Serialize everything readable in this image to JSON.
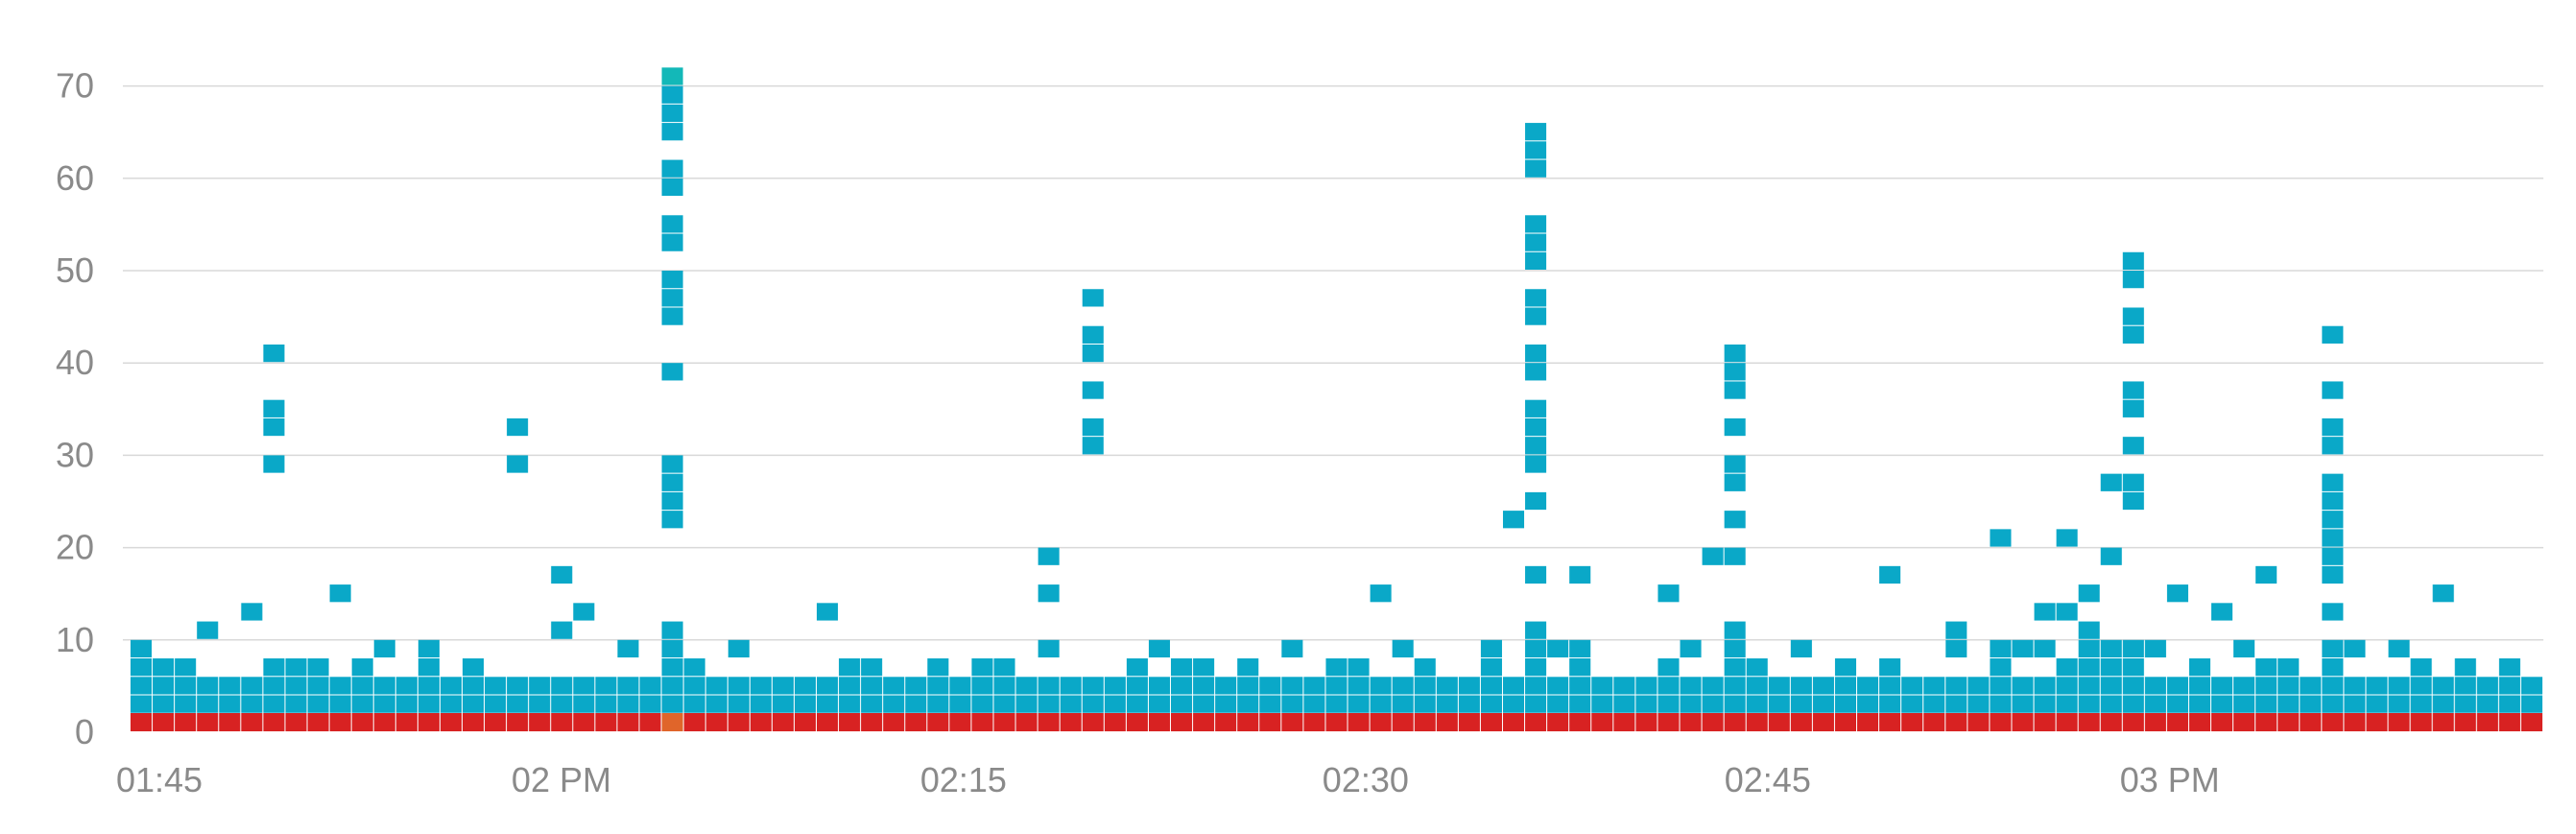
{
  "chart_data": {
    "type": "heatmap",
    "title": "",
    "xlabel": "",
    "ylabel": "",
    "x_tick_labels": [
      "01:45",
      "02 PM",
      "02:15",
      "02:30",
      "02:45",
      "03 PM"
    ],
    "x_tick_minutes": [
      0,
      15,
      30,
      45,
      60,
      75
    ],
    "y_tick_labels": [
      "0",
      "10",
      "20",
      "30",
      "40",
      "50",
      "60",
      "70"
    ],
    "y_ticks": [
      0,
      10,
      20,
      30,
      40,
      50,
      60,
      70
    ],
    "ylim": [
      0,
      72
    ],
    "x_range_minutes": [
      0,
      90
    ],
    "minutes_per_column": 1,
    "bucket_size": 2,
    "grid": true,
    "colors": {
      "cell": "#0aa8c8",
      "cell_hot": "#13b8b8",
      "baseline": "#d82222",
      "baseline_hot": "#e0652a",
      "grid": "#d9d9d9",
      "tick": "#8a8a8a"
    },
    "columns": [
      [
        2,
        4,
        6,
        8
      ],
      [
        2,
        4,
        6
      ],
      [
        2,
        4,
        6
      ],
      [
        2,
        4,
        10
      ],
      [
        2,
        4
      ],
      [
        2,
        4,
        12
      ],
      [
        2,
        4,
        6,
        28,
        32,
        34,
        40
      ],
      [
        2,
        4,
        6
      ],
      [
        2,
        4,
        6
      ],
      [
        2,
        4,
        14
      ],
      [
        2,
        4,
        6
      ],
      [
        2,
        4,
        8
      ],
      [
        2,
        4
      ],
      [
        2,
        4,
        6,
        8
      ],
      [
        2,
        4
      ],
      [
        2,
        4,
        6
      ],
      [
        2,
        4
      ],
      [
        2,
        4,
        28,
        32
      ],
      [
        2,
        4
      ],
      [
        2,
        4,
        10,
        16
      ],
      [
        2,
        4,
        12
      ],
      [
        2,
        4
      ],
      [
        2,
        4,
        8
      ],
      [
        2,
        4
      ],
      [
        2,
        4,
        6,
        8,
        10,
        22,
        24,
        26,
        28,
        38,
        44,
        46,
        48,
        52,
        54,
        58,
        60,
        64,
        66,
        68,
        70
      ],
      [
        2,
        4,
        6
      ],
      [
        2,
        4
      ],
      [
        2,
        4,
        8
      ],
      [
        2,
        4
      ],
      [
        2,
        4
      ],
      [
        2,
        4
      ],
      [
        2,
        4,
        12
      ],
      [
        2,
        4,
        6
      ],
      [
        2,
        4,
        6
      ],
      [
        2,
        4
      ],
      [
        2,
        4
      ],
      [
        2,
        4,
        6
      ],
      [
        2,
        4
      ],
      [
        2,
        4,
        6
      ],
      [
        2,
        4,
        6
      ],
      [
        2,
        4
      ],
      [
        2,
        4,
        8,
        14,
        18
      ],
      [
        2,
        4
      ],
      [
        2,
        4,
        30,
        32,
        36,
        40,
        42,
        46
      ],
      [
        2,
        4
      ],
      [
        2,
        4,
        6
      ],
      [
        2,
        4,
        8
      ],
      [
        2,
        4,
        6
      ],
      [
        2,
        4,
        6
      ],
      [
        2,
        4
      ],
      [
        2,
        4,
        6
      ],
      [
        2,
        4
      ],
      [
        2,
        4,
        8
      ],
      [
        2,
        4
      ],
      [
        2,
        4,
        6
      ],
      [
        2,
        4,
        6
      ],
      [
        2,
        4,
        14
      ],
      [
        2,
        4,
        8
      ],
      [
        2,
        4,
        6
      ],
      [
        2,
        4
      ],
      [
        2,
        4
      ],
      [
        2,
        4,
        6,
        8
      ],
      [
        2,
        4,
        22
      ],
      [
        2,
        4,
        6,
        8,
        10,
        16,
        24,
        28,
        30,
        32,
        34,
        38,
        40,
        44,
        46,
        50,
        52,
        54,
        60,
        62,
        64
      ],
      [
        2,
        4,
        8
      ],
      [
        2,
        4,
        6,
        8,
        16
      ],
      [
        2,
        4
      ],
      [
        2,
        4
      ],
      [
        2,
        4
      ],
      [
        2,
        4,
        6,
        14
      ],
      [
        2,
        4,
        8
      ],
      [
        2,
        4,
        18
      ],
      [
        2,
        4,
        6,
        8,
        10,
        18,
        22,
        26,
        28,
        32,
        36,
        38,
        40
      ],
      [
        2,
        4,
        6
      ],
      [
        2,
        4
      ],
      [
        2,
        4,
        8
      ],
      [
        2,
        4
      ],
      [
        2,
        4,
        6
      ],
      [
        2,
        4
      ],
      [
        2,
        4,
        6,
        16
      ],
      [
        2,
        4
      ],
      [
        2,
        4
      ],
      [
        2,
        4,
        8,
        10
      ],
      [
        2,
        4
      ],
      [
        2,
        4,
        6,
        8,
        20
      ],
      [
        2,
        4,
        8
      ],
      [
        2,
        4,
        8,
        12
      ],
      [
        2,
        4,
        6,
        12,
        20
      ],
      [
        2,
        4,
        6,
        8,
        10,
        14
      ],
      [
        2,
        4,
        6,
        8,
        18,
        26
      ],
      [
        2,
        4,
        6,
        8,
        24,
        26,
        30,
        34,
        36,
        42,
        44,
        48,
        50
      ],
      [
        2,
        4,
        8
      ],
      [
        2,
        4,
        14
      ],
      [
        2,
        4,
        6
      ],
      [
        2,
        4,
        12
      ],
      [
        2,
        4,
        8
      ],
      [
        2,
        4,
        6,
        16
      ],
      [
        2,
        4,
        6
      ],
      [
        2,
        4
      ],
      [
        2,
        4,
        6,
        8,
        12,
        16,
        18,
        20,
        22,
        24,
        26,
        30,
        32,
        36,
        42
      ],
      [
        2,
        4,
        8
      ],
      [
        2,
        4
      ],
      [
        2,
        4,
        8
      ],
      [
        2,
        4,
        6
      ],
      [
        2,
        4,
        14
      ],
      [
        2,
        4,
        6
      ],
      [
        2,
        4
      ],
      [
        2,
        4,
        6
      ],
      [
        2,
        4
      ]
    ]
  }
}
